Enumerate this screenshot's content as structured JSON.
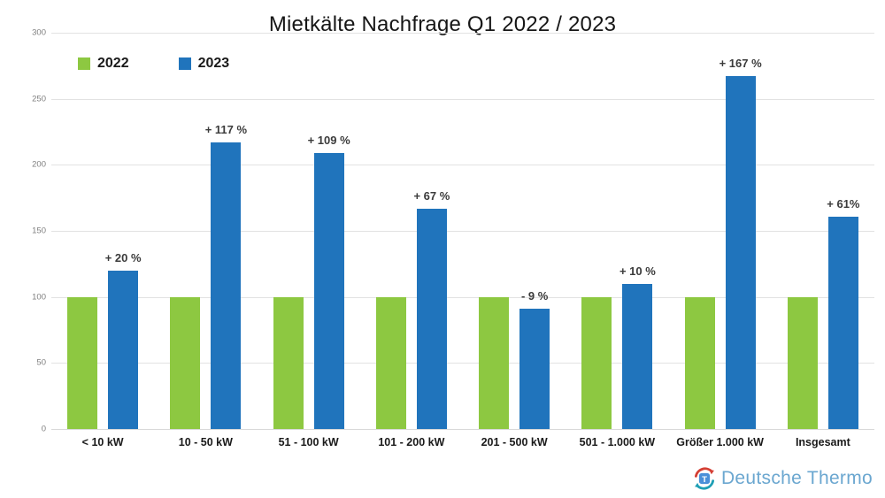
{
  "title": "Mietkälte Nachfrage Q1 2022 / 2023",
  "legend": {
    "items": [
      {
        "label": "2022",
        "color": "#8dc841"
      },
      {
        "label": "2023",
        "color": "#2074bc"
      }
    ]
  },
  "chart_data": {
    "type": "bar",
    "title": "Mietkälte Nachfrage Q1 2022 / 2023",
    "categories": [
      "< 10 kW",
      "10 - 50 kW",
      "51 - 100 kW",
      "101 - 200 kW",
      "201 - 500 kW",
      "501 - 1.000 kW",
      "Größer 1.000 kW",
      "Insgesamt"
    ],
    "series": [
      {
        "name": "2022",
        "color": "#8dc841",
        "values": [
          100,
          100,
          100,
          100,
          100,
          100,
          100,
          100
        ]
      },
      {
        "name": "2023",
        "color": "#2074bc",
        "values": [
          120,
          217,
          209,
          167,
          91,
          110,
          267,
          161
        ],
        "bar_labels": [
          "+ 20 %",
          "+ 117 %",
          "+ 109 %",
          "+ 67 %",
          "- 9 %",
          "+ 10 %",
          "+ 167 %",
          "+ 61%"
        ]
      }
    ],
    "xlabel": "",
    "ylabel": "",
    "ylim": [
      0,
      300
    ],
    "yticks": [
      0,
      50,
      100,
      150,
      200,
      250,
      300
    ],
    "grid": true,
    "legend_position": "top-left",
    "grid_color": "#e2e2e2"
  },
  "logo": {
    "text": "Deutsche Thermo",
    "icon": "circular-arrows-t-icon",
    "text_color": "#6ba7d0",
    "icon_colors": {
      "arrow_top": "#d43f34",
      "arrow_bottom": "#1e9fb5",
      "square": "#4a90d9"
    }
  }
}
